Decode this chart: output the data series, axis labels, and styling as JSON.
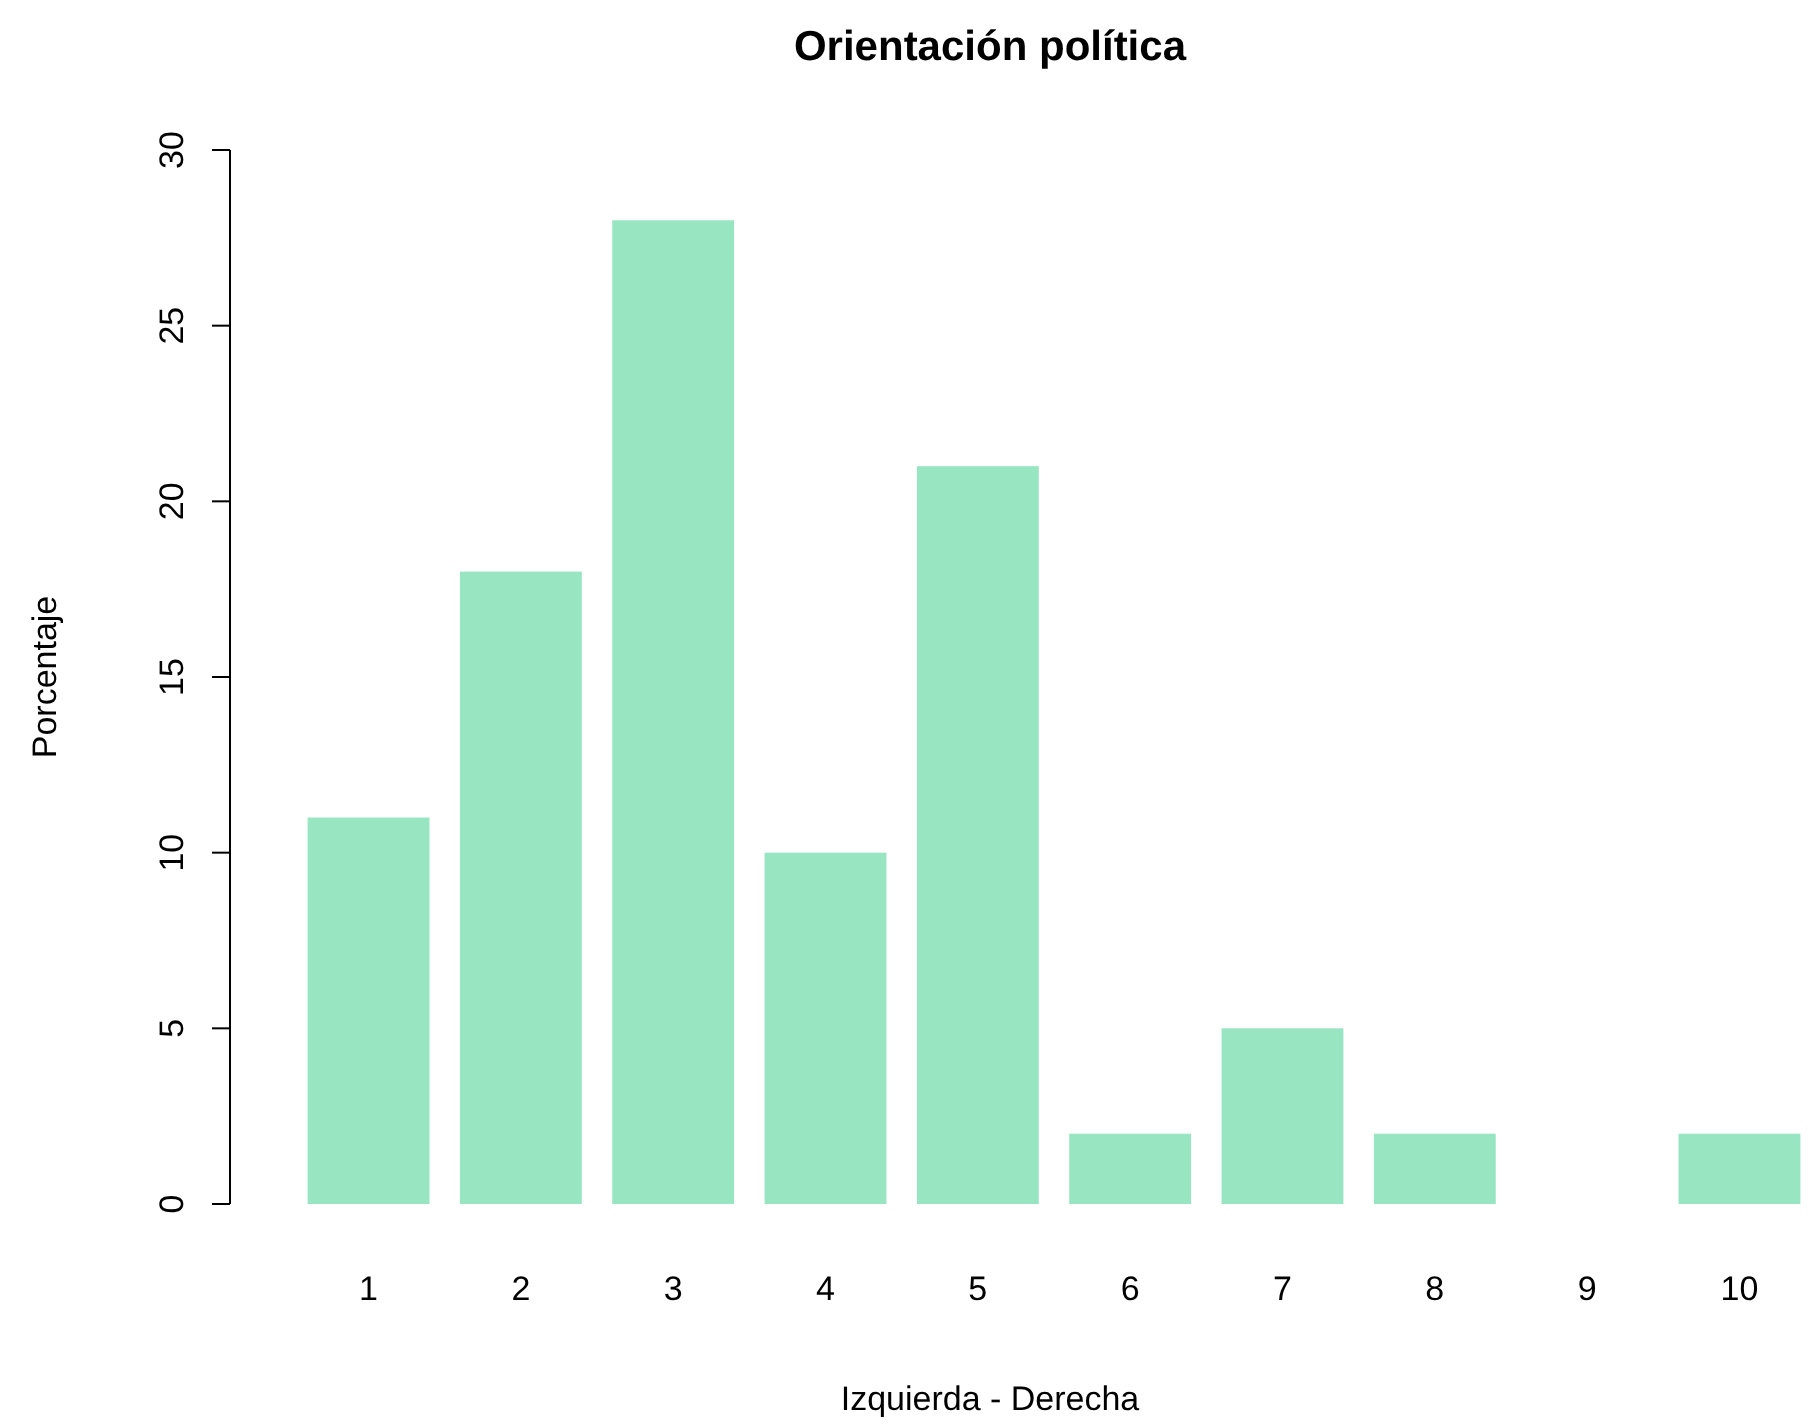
{
  "chart_data": {
    "type": "bar",
    "title": "Orientación política",
    "xlabel": "Izquierda - Derecha",
    "ylabel": "Porcentaje",
    "categories": [
      "1",
      "2",
      "3",
      "4",
      "5",
      "6",
      "7",
      "8",
      "9",
      "10"
    ],
    "values": [
      11,
      18,
      28,
      10,
      21,
      2,
      5,
      2,
      0,
      2
    ],
    "color": "#98e5c1",
    "ylim": [
      0,
      30
    ],
    "yticks": [
      0,
      5,
      10,
      15,
      20,
      25,
      30
    ]
  }
}
